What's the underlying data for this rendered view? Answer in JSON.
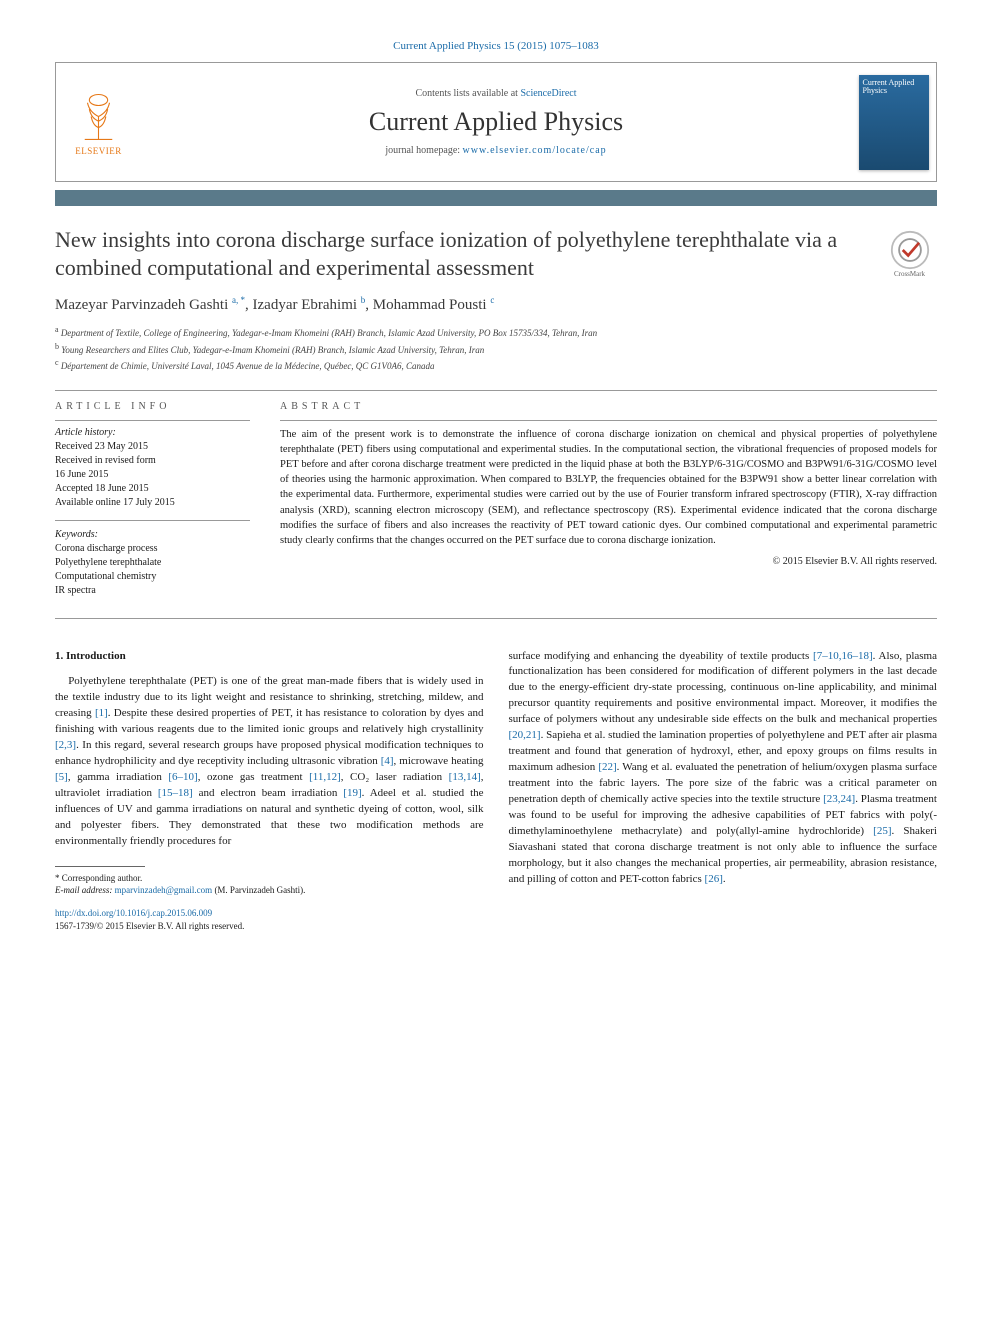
{
  "citation": "Current Applied Physics 15 (2015) 1075–1083",
  "masthead": {
    "contents_prefix": "Contents lists available at ",
    "contents_link": "ScienceDirect",
    "journal_name": "Current Applied Physics",
    "homepage_prefix": "journal homepage: ",
    "homepage_link": "www.elsevier.com/locate/cap",
    "publisher": "ELSEVIER",
    "cover_title": "Current Applied Physics"
  },
  "crossmark_label": "CrossMark",
  "title": "New insights into corona discharge surface ionization of polyethylene terephthalate via a combined computational and experimental assessment",
  "authors_html": "Mazeyar Parvinzadeh Gashti <sup>a, *</sup>, Izadyar Ebrahimi <sup>b</sup>, Mohammad Pousti <sup>c</sup>",
  "affiliations": [
    {
      "sup": "a",
      "text": "Department of Textile, College of Engineering, Yadegar-e-Imam Khomeini (RAH) Branch, Islamic Azad University, PO Box 15735/334, Tehran, Iran"
    },
    {
      "sup": "b",
      "text": "Young Researchers and Elites Club, Yadegar-e-Imam Khomeini (RAH) Branch, Islamic Azad University, Tehran, Iran"
    },
    {
      "sup": "c",
      "text": "Département de Chimie, Université Laval, 1045 Avenue de la Médecine, Québec, QC G1V0A6, Canada"
    }
  ],
  "article_info": {
    "label": "ARTICLE INFO",
    "history_label": "Article history:",
    "history_lines": [
      "Received 23 May 2015",
      "Received in revised form",
      "16 June 2015",
      "Accepted 18 June 2015",
      "Available online 17 July 2015"
    ],
    "keywords_label": "Keywords:",
    "keywords": [
      "Corona discharge process",
      "Polyethylene terephthalate",
      "Computational chemistry",
      "IR spectra"
    ]
  },
  "abstract": {
    "label": "ABSTRACT",
    "text": "The aim of the present work is to demonstrate the influence of corona discharge ionization on chemical and physical properties of polyethylene terephthalate (PET) fibers using computational and experimental studies. In the computational section, the vibrational frequencies of proposed models for PET before and after corona discharge treatment were predicted in the liquid phase at both the B3LYP/6-31G/COSMO and B3PW91/6-31G/COSMO level of theories using the harmonic approximation. When compared to B3LYP, the frequencies obtained for the B3PW91 show a better linear correlation with the experimental data. Furthermore, experimental studies were carried out by the use of Fourier transform infrared spectroscopy (FTIR), X-ray diffraction analysis (XRD), scanning electron microscopy (SEM), and reflectance spectroscopy (RS). Experimental evidence indicated that the corona discharge modifies the surface of fibers and also increases the reactivity of PET toward cationic dyes. Our combined computational and experimental parametric study clearly confirms that the changes occurred on the PET surface due to corona discharge ionization.",
    "copyright": "© 2015 Elsevier B.V. All rights reserved."
  },
  "body": {
    "intro_heading": "1. Introduction",
    "col1": "Polyethylene terephthalate (PET) is one of the great man-made fibers that is widely used in the textile industry due to its light weight and resistance to shrinking, stretching, mildew, and creasing [1]. Despite these desired properties of PET, it has resistance to coloration by dyes and finishing with various reagents due to the limited ionic groups and relatively high crystallinity [2,3]. In this regard, several research groups have proposed physical modification techniques to enhance hydrophilicity and dye receptivity including ultrasonic vibration [4], microwave heating [5], gamma irradiation [6–10], ozone gas treatment [11,12], CO₂ laser radiation [13,14], ultraviolet irradiation [15–18] and electron beam irradiation [19]. Adeel et al. studied the influences of UV and gamma irradiations on natural and synthetic dyeing of cotton, wool, silk and polyester fibers. They demonstrated that these two modification methods are environmentally friendly procedures for",
    "col2": "surface modifying and enhancing the dyeability of textile products [7–10,16–18]. Also, plasma functionalization has been considered for modification of different polymers in the last decade due to the energy-efficient dry-state processing, continuous on-line applicability, and minimal precursor quantity requirements and positive environmental impact. Moreover, it modifies the surface of polymers without any undesirable side effects on the bulk and mechanical properties [20,21]. Sapieha et al. studied the lamination properties of polyethylene and PET after air plasma treatment and found that generation of hydroxyl, ether, and epoxy groups on films results in maximum adhesion [22]. Wang et al. evaluated the penetration of helium/oxygen plasma surface treatment into the fabric layers. The pore size of the fabric was a critical parameter on penetration depth of chemically active species into the textile structure [23,24]. Plasma treatment was found to be useful for improving the adhesive capabilities of PET fabrics with poly(-dimethylaminoethylene methacrylate) and poly(allyl-amine hydrochloride) [25]. Shakeri Siavashani stated that corona discharge treatment is not only able to influence the surface morphology, but it also changes the mechanical properties, air permeability, abrasion resistance, and pilling of cotton and PET-cotton fabrics [26]."
  },
  "footnote": {
    "corr": "* Corresponding author.",
    "email_label": "E-mail address: ",
    "email": "mparvinzadeh@gmail.com",
    "email_author": " (M. Parvinzadeh Gashti)."
  },
  "doi": {
    "url": "http://dx.doi.org/10.1016/j.cap.2015.06.009",
    "issn_line": "1567-1739/© 2015 Elsevier B.V. All rights reserved."
  },
  "refs": {
    "r1": "[1]",
    "r2": "[2,3]",
    "r3": "[4]",
    "r4": "[5]",
    "r5": "[6–10]",
    "r6": "[11,12]",
    "r7": "[13,14]",
    "r8": "[15–18]",
    "r9": "[19]",
    "r10": "[7–10,16–18]",
    "r11": "[20,21]",
    "r12": "[22]",
    "r13": "[23,24]",
    "r14": "[25]",
    "r15": "[26]"
  },
  "colors": {
    "link": "#1a6ba8",
    "text": "#1a1a1a",
    "bar": "#5a7a8a",
    "elsevier_orange": "#e67817"
  }
}
